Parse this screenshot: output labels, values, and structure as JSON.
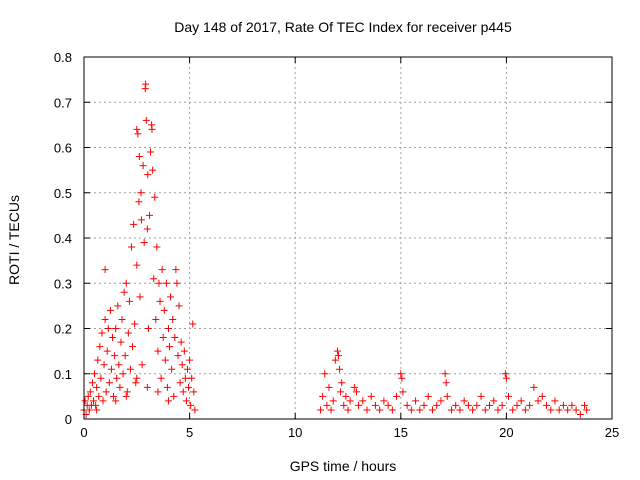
{
  "chart_data": {
    "type": "scatter",
    "title": "Day 148 of 2017, Rate Of TEC Index for receiver p445",
    "xlabel": "GPS time / hours",
    "ylabel": "ROTI / TECUs",
    "xlim": [
      0,
      25
    ],
    "ylim": [
      0,
      0.8
    ],
    "grid": true,
    "marker": "+",
    "color": "#ff0000",
    "x_ticks": [
      "0",
      "5",
      "10",
      "15",
      "20",
      "25"
    ],
    "y_ticks": [
      "0",
      "0.1",
      "0.2",
      "0.3",
      "0.4",
      "0.5",
      "0.6",
      "0.7",
      "0.8"
    ],
    "series": [
      {
        "name": "ROTI",
        "note": "dense scatter; representative sampled points estimated from the plot",
        "points": [
          [
            0.0,
            0.02
          ],
          [
            0.05,
            0.04
          ],
          [
            0.1,
            0.01
          ],
          [
            0.15,
            0.03
          ],
          [
            0.2,
            0.05
          ],
          [
            0.25,
            0.02
          ],
          [
            0.3,
            0.06
          ],
          [
            0.35,
            0.03
          ],
          [
            0.4,
            0.08
          ],
          [
            0.45,
            0.04
          ],
          [
            0.5,
            0.1
          ],
          [
            0.55,
            0.03
          ],
          [
            0.6,
            0.07
          ],
          [
            0.65,
            0.13
          ],
          [
            0.7,
            0.05
          ],
          [
            0.75,
            0.16
          ],
          [
            0.8,
            0.09
          ],
          [
            0.85,
            0.19
          ],
          [
            0.9,
            0.04
          ],
          [
            0.95,
            0.12
          ],
          [
            1.0,
            0.33
          ],
          [
            1.0,
            0.22
          ],
          [
            1.05,
            0.06
          ],
          [
            1.1,
            0.15
          ],
          [
            1.15,
            0.2
          ],
          [
            1.2,
            0.08
          ],
          [
            1.25,
            0.24
          ],
          [
            1.3,
            0.11
          ],
          [
            1.35,
            0.18
          ],
          [
            1.4,
            0.05
          ],
          [
            1.45,
            0.14
          ],
          [
            1.5,
            0.2
          ],
          [
            1.55,
            0.09
          ],
          [
            1.6,
            0.25
          ],
          [
            1.65,
            0.12
          ],
          [
            1.7,
            0.07
          ],
          [
            1.75,
            0.17
          ],
          [
            1.8,
            0.22
          ],
          [
            1.85,
            0.1
          ],
          [
            1.9,
            0.28
          ],
          [
            1.95,
            0.14
          ],
          [
            2.0,
            0.3
          ],
          [
            2.05,
            0.06
          ],
          [
            2.1,
            0.19
          ],
          [
            2.15,
            0.26
          ],
          [
            2.2,
            0.11
          ],
          [
            2.25,
            0.38
          ],
          [
            2.3,
            0.16
          ],
          [
            2.35,
            0.43
          ],
          [
            2.4,
            0.21
          ],
          [
            2.45,
            0.08
          ],
          [
            2.5,
            0.64
          ],
          [
            2.5,
            0.34
          ],
          [
            2.55,
            0.63
          ],
          [
            2.6,
            0.48
          ],
          [
            2.62,
            0.58
          ],
          [
            2.65,
            0.27
          ],
          [
            2.7,
            0.5
          ],
          [
            2.72,
            0.44
          ],
          [
            2.75,
            0.12
          ],
          [
            2.8,
            0.56
          ],
          [
            2.85,
            0.39
          ],
          [
            2.9,
            0.73
          ],
          [
            2.92,
            0.74
          ],
          [
            2.95,
            0.66
          ],
          [
            3.0,
            0.42
          ],
          [
            3.02,
            0.54
          ],
          [
            3.05,
            0.2
          ],
          [
            3.1,
            0.45
          ],
          [
            3.15,
            0.59
          ],
          [
            3.2,
            0.65
          ],
          [
            3.22,
            0.64
          ],
          [
            3.25,
            0.55
          ],
          [
            3.3,
            0.31
          ],
          [
            3.35,
            0.49
          ],
          [
            3.4,
            0.22
          ],
          [
            3.45,
            0.38
          ],
          [
            3.5,
            0.15
          ],
          [
            3.55,
            0.3
          ],
          [
            3.6,
            0.26
          ],
          [
            3.65,
            0.09
          ],
          [
            3.7,
            0.33
          ],
          [
            3.75,
            0.18
          ],
          [
            3.8,
            0.24
          ],
          [
            3.85,
            0.13
          ],
          [
            3.9,
            0.3
          ],
          [
            3.95,
            0.07
          ],
          [
            4.0,
            0.2
          ],
          [
            4.05,
            0.16
          ],
          [
            4.1,
            0.27
          ],
          [
            4.15,
            0.11
          ],
          [
            4.2,
            0.22
          ],
          [
            4.25,
            0.05
          ],
          [
            4.3,
            0.18
          ],
          [
            4.35,
            0.33
          ],
          [
            4.4,
            0.3
          ],
          [
            4.45,
            0.14
          ],
          [
            4.5,
            0.25
          ],
          [
            4.55,
            0.08
          ],
          [
            4.6,
            0.17
          ],
          [
            4.65,
            0.12
          ],
          [
            4.7,
            0.06
          ],
          [
            4.75,
            0.15
          ],
          [
            4.8,
            0.09
          ],
          [
            4.85,
            0.04
          ],
          [
            4.9,
            0.11
          ],
          [
            4.95,
            0.07
          ],
          [
            5.0,
            0.13
          ],
          [
            5.05,
            0.03
          ],
          [
            5.1,
            0.09
          ],
          [
            5.15,
            0.21
          ],
          [
            5.2,
            0.06
          ],
          [
            5.25,
            0.02
          ],
          [
            3.0,
            0.07
          ],
          [
            2.0,
            0.05
          ],
          [
            1.5,
            0.04
          ],
          [
            3.5,
            0.06
          ],
          [
            4.0,
            0.04
          ],
          [
            2.5,
            0.09
          ],
          [
            0.6,
            0.02
          ],
          [
            11.2,
            0.02
          ],
          [
            11.3,
            0.05
          ],
          [
            11.4,
            0.1
          ],
          [
            11.5,
            0.03
          ],
          [
            11.6,
            0.07
          ],
          [
            11.7,
            0.02
          ],
          [
            11.8,
            0.04
          ],
          [
            11.9,
            0.13
          ],
          [
            12.0,
            0.15
          ],
          [
            12.05,
            0.14
          ],
          [
            12.1,
            0.11
          ],
          [
            12.15,
            0.06
          ],
          [
            12.2,
            0.08
          ],
          [
            12.3,
            0.03
          ],
          [
            12.4,
            0.05
          ],
          [
            12.5,
            0.02
          ],
          [
            12.6,
            0.04
          ],
          [
            12.8,
            0.07
          ],
          [
            12.9,
            0.06
          ],
          [
            13.0,
            0.03
          ],
          [
            13.2,
            0.04
          ],
          [
            13.4,
            0.02
          ],
          [
            13.6,
            0.05
          ],
          [
            13.8,
            0.03
          ],
          [
            14.0,
            0.02
          ],
          [
            14.2,
            0.04
          ],
          [
            14.4,
            0.03
          ],
          [
            14.6,
            0.02
          ],
          [
            14.8,
            0.05
          ],
          [
            15.0,
            0.1
          ],
          [
            15.05,
            0.09
          ],
          [
            15.1,
            0.06
          ],
          [
            15.3,
            0.03
          ],
          [
            15.5,
            0.02
          ],
          [
            15.7,
            0.04
          ],
          [
            15.9,
            0.02
          ],
          [
            16.1,
            0.03
          ],
          [
            16.3,
            0.05
          ],
          [
            16.5,
            0.02
          ],
          [
            16.7,
            0.03
          ],
          [
            16.9,
            0.04
          ],
          [
            17.1,
            0.1
          ],
          [
            17.15,
            0.08
          ],
          [
            17.2,
            0.05
          ],
          [
            17.4,
            0.02
          ],
          [
            17.6,
            0.03
          ],
          [
            17.8,
            0.02
          ],
          [
            18.0,
            0.04
          ],
          [
            18.2,
            0.03
          ],
          [
            18.4,
            0.02
          ],
          [
            18.6,
            0.03
          ],
          [
            18.8,
            0.05
          ],
          [
            19.0,
            0.02
          ],
          [
            19.2,
            0.03
          ],
          [
            19.4,
            0.04
          ],
          [
            19.6,
            0.02
          ],
          [
            19.8,
            0.03
          ],
          [
            19.95,
            0.1
          ],
          [
            20.0,
            0.09
          ],
          [
            20.1,
            0.05
          ],
          [
            20.3,
            0.02
          ],
          [
            20.5,
            0.03
          ],
          [
            20.7,
            0.04
          ],
          [
            20.9,
            0.02
          ],
          [
            21.1,
            0.03
          ],
          [
            21.3,
            0.07
          ],
          [
            21.5,
            0.04
          ],
          [
            21.7,
            0.05
          ],
          [
            21.9,
            0.03
          ],
          [
            22.1,
            0.02
          ],
          [
            22.3,
            0.04
          ],
          [
            22.5,
            0.02
          ],
          [
            22.7,
            0.03
          ],
          [
            22.9,
            0.02
          ],
          [
            23.1,
            0.03
          ],
          [
            23.3,
            0.02
          ],
          [
            23.5,
            0.01
          ],
          [
            23.7,
            0.03
          ],
          [
            23.8,
            0.02
          ]
        ]
      }
    ]
  }
}
